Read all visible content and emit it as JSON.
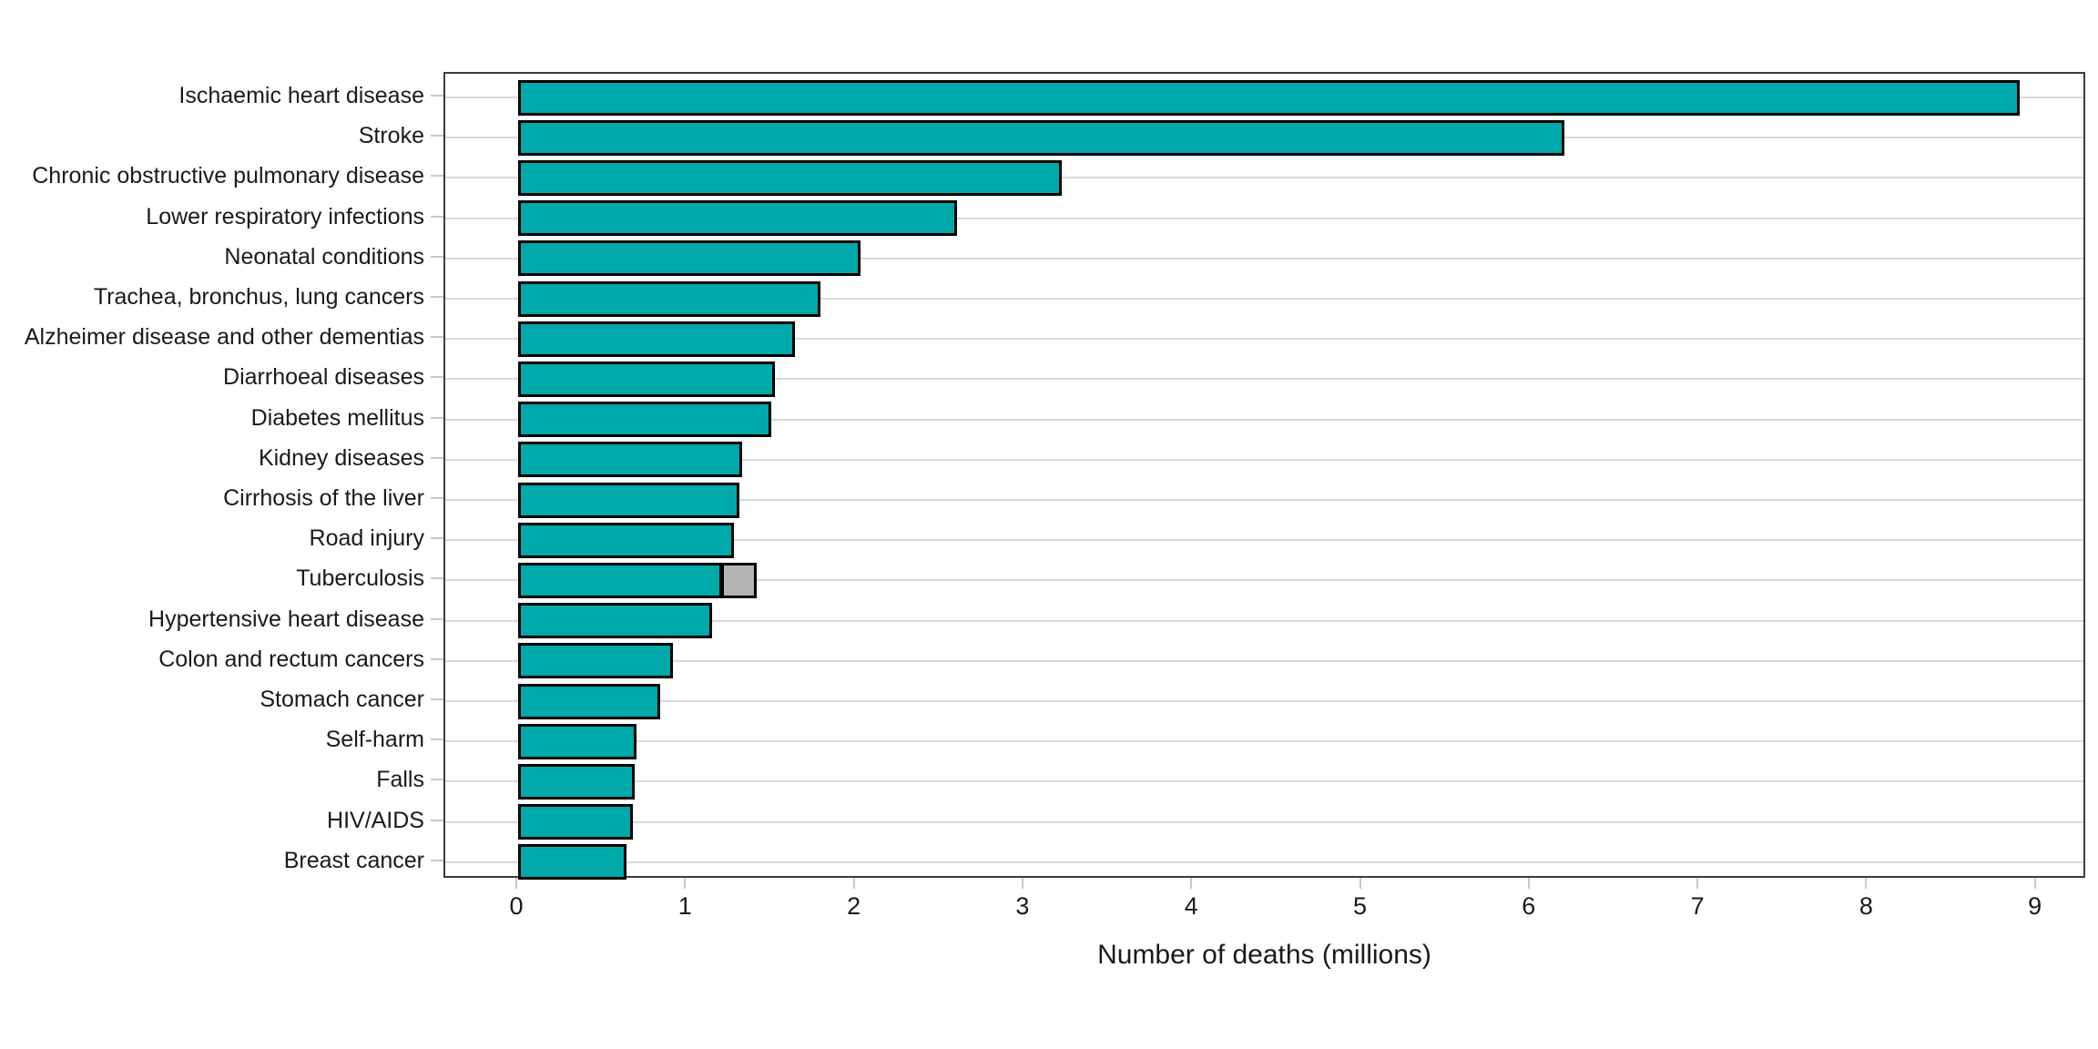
{
  "chart_data": {
    "type": "bar",
    "orientation": "horizontal",
    "title": "",
    "xlabel": "Number of deaths (millions)",
    "ylabel": "",
    "xlim": [
      0,
      9.35
    ],
    "x_ticks": [
      0,
      1,
      2,
      3,
      4,
      5,
      6,
      7,
      8,
      9
    ],
    "grid": "horizontal major gridlines only, light gray",
    "legend": "none",
    "categories": [
      "Ischaemic heart disease",
      "Stroke",
      "Chronic obstructive pulmonary disease",
      "Lower respiratory infections",
      "Neonatal conditions",
      "Trachea, bronchus, lung cancers",
      "Alzheimer disease and other dementias",
      "Diarrhoeal diseases",
      "Diabetes mellitus",
      "Kidney diseases",
      "Cirrhosis of the liver",
      "Road injury",
      "Tuberculosis",
      "Hypertensive heart disease",
      "Colon and rectum cancers",
      "Stomach cancer",
      "Self-harm",
      "Falls",
      "HIV/AIDS",
      "Breast cancer"
    ],
    "values": [
      8.9,
      6.2,
      3.22,
      2.6,
      2.03,
      1.79,
      1.64,
      1.52,
      1.5,
      1.33,
      1.31,
      1.28,
      1.21,
      1.15,
      0.92,
      0.84,
      0.7,
      0.69,
      0.68,
      0.64
    ],
    "extra_segments": [
      {
        "category": "Tuberculosis",
        "category_index": 12,
        "from": 1.21,
        "to": 1.42,
        "color": "#b3b3b3"
      }
    ],
    "colors": {
      "bar_fill": "#00a9a9",
      "bar_border": "#000000",
      "segment_fill": "#b3b3b3",
      "gridline": "#d9d9d9",
      "panel_border": "#3d3d3d",
      "tick": "#c9c9c9",
      "text": "#1a1a1a",
      "background": "#ffffff"
    }
  },
  "axis": {
    "x_title": "Number of deaths (millions)"
  }
}
